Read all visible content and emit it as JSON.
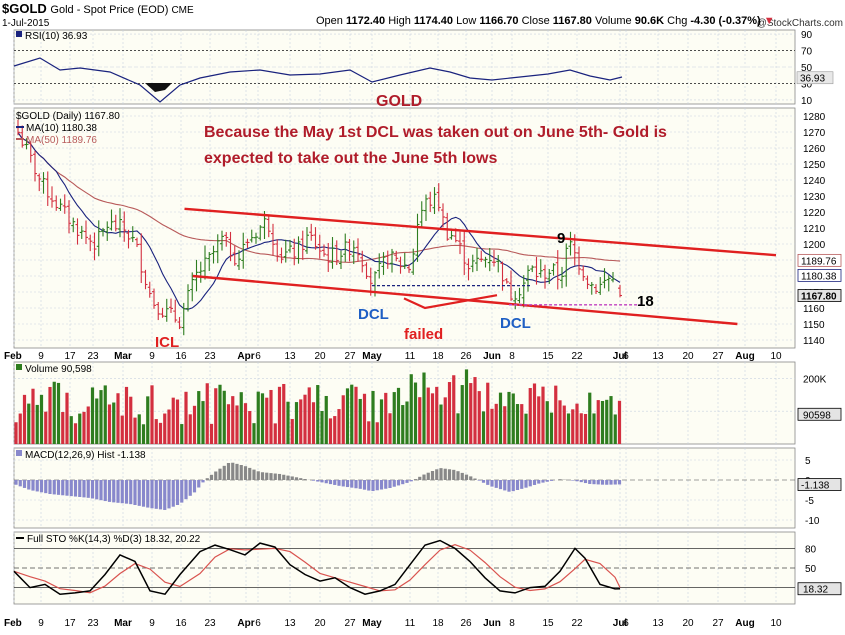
{
  "header": {
    "symbol": "$GOLD",
    "name": "Gold - Spot Price (EOD)",
    "exchange": "CME",
    "date": "1-Jul-2015",
    "copyright": "@StockCharts.com",
    "open_label": "Open",
    "open": "1172.40",
    "high_label": "High",
    "high": "1174.40",
    "low_label": "Low",
    "low": "1166.70",
    "close_label": "Close",
    "close": "1167.80",
    "volume_label": "Volume",
    "volume": "90.6K",
    "chg_label": "Chg",
    "chg": "-4.30 (-0.37%)",
    "chg_arrow": "▼"
  },
  "colors": {
    "up": "#2e7d1f",
    "down": "#d32f3f",
    "ma10": "#1a237e",
    "ma50": "#b85a5a",
    "trendline": "#e02020",
    "annotation": "#b01c2a",
    "dcl": "#1f5fc4",
    "grid": "#c9d2e0",
    "panel_bg": "#fdfdf4",
    "macd_hist": "#8888cc",
    "macd_hist_pos": "#888888",
    "sto_k": "#000000",
    "sto_d": "#d9534f"
  },
  "x_axis": {
    "labels": [
      "Feb",
      "9",
      "17",
      "23",
      "Mar",
      "9",
      "16",
      "23",
      "Apr",
      "6",
      "13",
      "20",
      "27",
      "May",
      "11",
      "18",
      "26",
      "Jun",
      "8",
      "15",
      "22",
      "Jul",
      "6",
      "13",
      "20",
      "27",
      "Aug",
      "10"
    ],
    "bold": [
      "Feb",
      "Mar",
      "Apr",
      "May",
      "Jun",
      "Jul",
      "Aug"
    ]
  },
  "rsi": {
    "legend": "RSI(10) 36.93",
    "ticks": [
      "90",
      "70",
      "50",
      "30",
      "10"
    ],
    "last_value": "36.93"
  },
  "price": {
    "legend": "$GOLD (Daily) 1167.80",
    "ma10_legend": "MA(10) 1180.38",
    "ma50_legend": "MA(50) 1189.76",
    "ticks": [
      "1280",
      "1270",
      "1260",
      "1250",
      "1240",
      "1230",
      "1220",
      "1210",
      "1200",
      "1190",
      "1180",
      "1170",
      "1160",
      "1150",
      "1140"
    ],
    "tags": [
      {
        "value": "1189.76",
        "kind": "ma50"
      },
      {
        "value": "1180.38",
        "kind": "ma10"
      },
      {
        "value": "1167.80",
        "kind": "close"
      }
    ],
    "title_text": "GOLD",
    "annotation_line1": "Because the May 1st DCL was taken out on June 5th- Gold is",
    "annotation_line2": "expected to take out the June 5th lows",
    "labels": {
      "icl": "ICL",
      "dcl1": "DCL",
      "dcl2": "DCL",
      "failed": "failed",
      "nine": "9",
      "eighteen": "18"
    }
  },
  "volume": {
    "legend": "Volume 90,598",
    "ticks": [
      "200K",
      "100K"
    ],
    "last_value": "90598"
  },
  "macd": {
    "legend": "MACD(12,26,9) Hist -1.138",
    "ticks": [
      "5",
      "0",
      "-5",
      "-10"
    ],
    "last_value": "-1.138"
  },
  "sto": {
    "legend": "Full STO %K(14,3) %D(3) 18.32, 20.22",
    "ticks": [
      "80",
      "50",
      "20"
    ],
    "last_value": "18.32"
  },
  "chart_data": {
    "type": "candlestick",
    "title": "$GOLD Gold - Spot Price (EOD) CME",
    "period": "Daily",
    "x_range": [
      "Feb 2015",
      "Aug 10 2015"
    ],
    "price_ylim": [
      1140,
      1285
    ],
    "ohlc": {
      "open": 1172.4,
      "high": 1174.4,
      "low": 1166.7,
      "close": 1167.8
    },
    "close_path": [
      [
        "Feb 2",
        1275
      ],
      [
        "Feb 4",
        1265
      ],
      [
        "Feb 9",
        1238
      ],
      [
        "Feb 13",
        1225
      ],
      [
        "Feb 17",
        1213
      ],
      [
        "Feb 20",
        1205
      ],
      [
        "Feb 23",
        1200
      ],
      [
        "Feb 26",
        1212
      ],
      [
        "Mar 2",
        1210
      ],
      [
        "Mar 5",
        1200
      ],
      [
        "Mar 9",
        1165
      ],
      [
        "Mar 12",
        1158
      ],
      [
        "Mar 16",
        1152
      ],
      [
        "Mar 18",
        1168
      ],
      [
        "Mar 20",
        1181
      ],
      [
        "Mar 23",
        1190
      ],
      [
        "Mar 26",
        1203
      ],
      [
        "Mar 30",
        1190
      ],
      [
        "Apr 1",
        1201
      ],
      [
        "Apr 6",
        1215
      ],
      [
        "Apr 9",
        1193
      ],
      [
        "Apr 13",
        1195
      ],
      [
        "Apr 16",
        1205
      ],
      [
        "Apr 20",
        1192
      ],
      [
        "Apr 23",
        1194
      ],
      [
        "Apr 27",
        1200
      ],
      [
        "Apr 30",
        1183
      ],
      [
        "May 1",
        1175
      ],
      [
        "May 5",
        1192
      ],
      [
        "May 8",
        1188
      ],
      [
        "May 11",
        1185
      ],
      [
        "May 13",
        1217
      ],
      [
        "May 15",
        1226
      ],
      [
        "May 18",
        1228
      ],
      [
        "May 20",
        1208
      ],
      [
        "May 22",
        1205
      ],
      [
        "May 26",
        1187
      ],
      [
        "May 28",
        1188
      ],
      [
        "Jun 1",
        1193
      ],
      [
        "Jun 3",
        1185
      ],
      [
        "Jun 5",
        1168
      ],
      [
        "Jun 8",
        1173
      ],
      [
        "Jun 10",
        1185
      ],
      [
        "Jun 12",
        1180
      ],
      [
        "Jun 15",
        1184
      ],
      [
        "Jun 17",
        1178
      ],
      [
        "Jun 19",
        1201
      ],
      [
        "Jun 22",
        1185
      ],
      [
        "Jun 24",
        1175
      ],
      [
        "Jun 26",
        1173
      ],
      [
        "Jun 29",
        1180
      ],
      [
        "Jul 1",
        1167.8
      ]
    ],
    "series": [
      {
        "name": "MA(10)",
        "last": 1180.38
      },
      {
        "name": "MA(50)",
        "last": 1189.76
      },
      {
        "name": "RSI(10)",
        "last": 36.93,
        "ylim": [
          10,
          90
        ]
      },
      {
        "name": "Volume",
        "last": 90598,
        "ylim": [
          0,
          250000
        ]
      },
      {
        "name": "MACD(12,26,9) Hist",
        "last": -1.138,
        "ylim": [
          -12,
          8
        ]
      },
      {
        "name": "%K(14,3)",
        "last": 18.32,
        "ylim": [
          0,
          100
        ]
      },
      {
        "name": "%D(3)",
        "last": 20.22,
        "ylim": [
          0,
          100
        ]
      }
    ],
    "trendlines": [
      {
        "name": "upper channel",
        "from": [
          "Mar 17",
          1222
        ],
        "to": [
          "Aug 10",
          1193
        ]
      },
      {
        "name": "lower channel",
        "from": [
          "Mar 19",
          1180
        ],
        "to": [
          "Aug 1",
          1150
        ]
      },
      {
        "name": "May 1 DCL support",
        "from": [
          "May 1",
          1174
        ],
        "to": [
          "Jun 10",
          1174
        ]
      },
      {
        "name": "June 5 low support",
        "from": [
          "Jun 5",
          1162
        ],
        "to": [
          "Jul 10",
          1162
        ]
      }
    ],
    "legend_placement": "top-left",
    "grid": true
  }
}
